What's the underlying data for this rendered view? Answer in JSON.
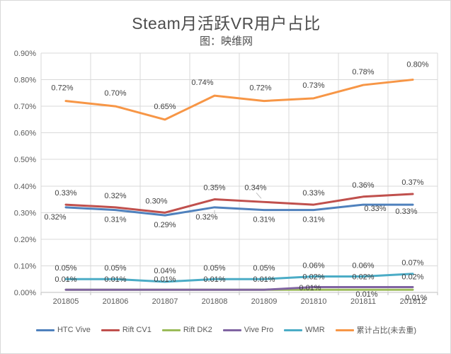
{
  "chart_data": {
    "type": "line",
    "title": "Steam月活跃VR用户占比",
    "subtitle": "图：映维网",
    "categories": [
      "201805",
      "201806",
      "201807",
      "201808",
      "201809",
      "201810",
      "201811",
      "201812"
    ],
    "y_axis": {
      "min": 0,
      "max": 0.9,
      "step": 0.1,
      "tick_labels": [
        "0.00%",
        "0.10%",
        "0.20%",
        "0.30%",
        "0.40%",
        "0.50%",
        "0.60%",
        "0.70%",
        "0.80%",
        "0.90%"
      ],
      "unit": "percent"
    },
    "grid": true,
    "legend_position": "bottom",
    "colors": {
      "gridline": "#d9d9d9",
      "axis_line": "#bfbfbf",
      "axis_text": "#595959",
      "label_text": "#404040",
      "leader_line": "#bfbfbf"
    },
    "series": [
      {
        "name": "HTC Vive",
        "color": "#4F81BD",
        "values": [
          0.32,
          0.31,
          0.29,
          0.32,
          0.31,
          0.31,
          0.33,
          0.33
        ],
        "label_dy": 13,
        "label_overrides": {
          "0": {
            "dx": -15
          },
          "3": {
            "dx": -11,
            "leader": "down"
          },
          "6": {
            "dx": 17,
            "dy": -8
          },
          "7": {
            "dx": -9,
            "dy": -4
          }
        }
      },
      {
        "name": "Rift CV1",
        "color": "#C0504D",
        "values": [
          0.33,
          0.32,
          0.3,
          0.35,
          0.34,
          0.33,
          0.36,
          0.37
        ],
        "label_dy": -17,
        "label_overrides": {
          "2": {
            "dx": -12
          },
          "4": {
            "dx": -12,
            "dy": -4,
            "leader": "diag"
          }
        }
      },
      {
        "name": "Rift DK2",
        "color": "#9BBB59",
        "values": [
          0.01,
          0.01,
          0.01,
          0.01,
          0.01,
          0.01,
          0.01,
          0.01
        ],
        "label_dy": 13,
        "hidden_labels": [
          0,
          1,
          2,
          3,
          4
        ],
        "label_overrides": {
          "5": {
            "dx": -5,
            "dy": -16
          },
          "6": {
            "dx": 5,
            "dy": -7
          },
          "7": {
            "dx": 5,
            "dy": -2
          }
        }
      },
      {
        "name": "Vive Pro",
        "color": "#8064A2",
        "values": [
          0.01,
          0.01,
          0.01,
          0.01,
          0.01,
          0.02,
          0.02,
          0.02
        ],
        "label_dy": -15,
        "label_overrides": {}
      },
      {
        "name": "WMR",
        "color": "#4BACC6",
        "values": [
          0.05,
          0.05,
          0.04,
          0.05,
          0.05,
          0.06,
          0.06,
          0.07
        ],
        "label_dy": -16,
        "label_overrides": {}
      },
      {
        "name": "累计占比(未去重)",
        "color": "#F79646",
        "values": [
          0.72,
          0.7,
          0.65,
          0.74,
          0.72,
          0.73,
          0.78,
          0.8
        ],
        "label_dy": -19,
        "label_overrides": {
          "0": {
            "dx": -5
          },
          "3": {
            "dx": -17
          },
          "4": {
            "dx": -5
          },
          "7": {
            "dx": 7,
            "dy": -3
          }
        }
      }
    ]
  }
}
